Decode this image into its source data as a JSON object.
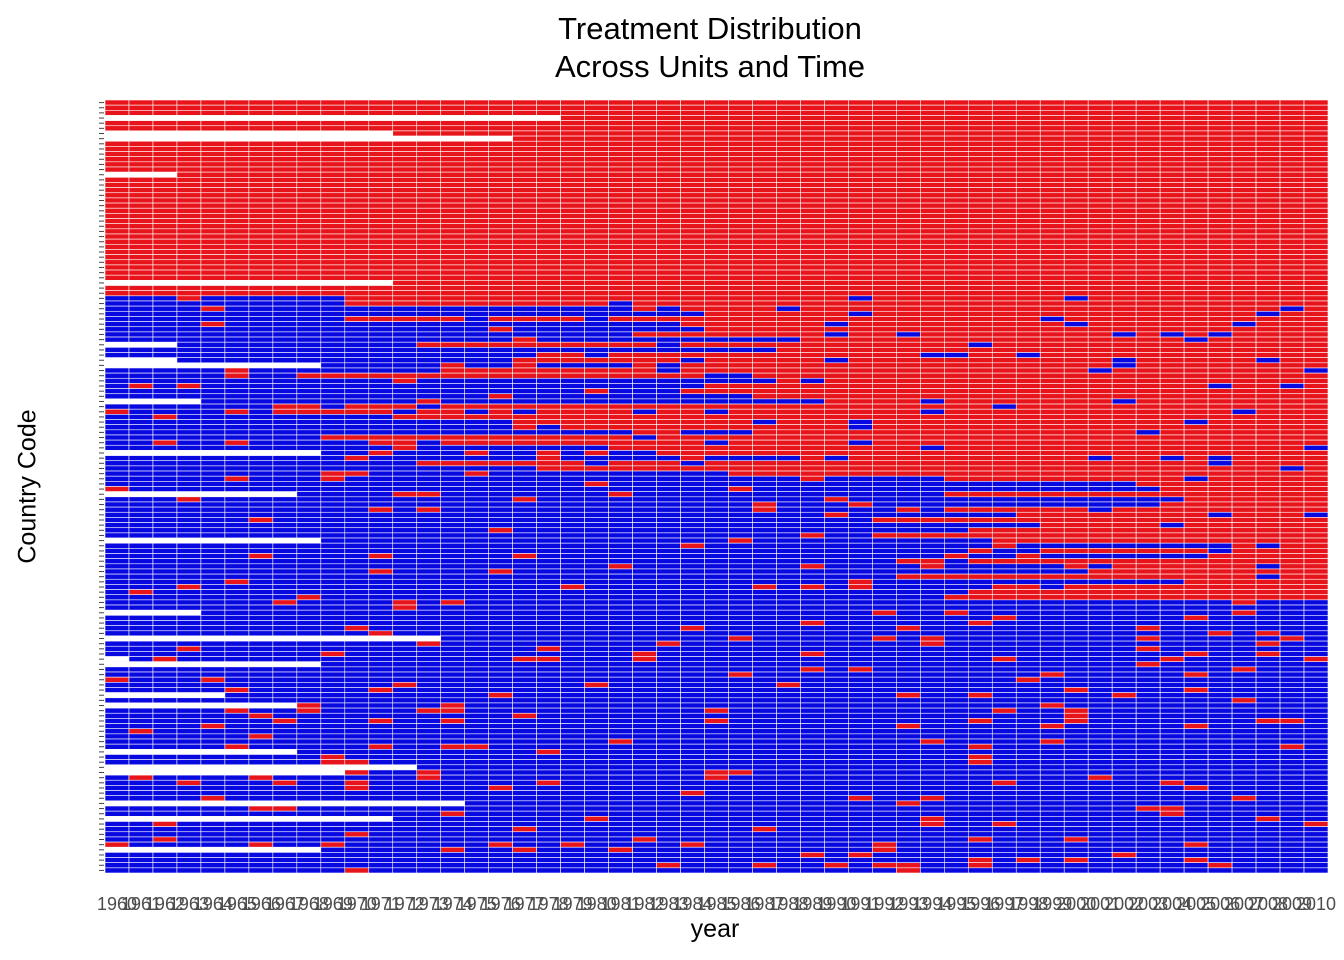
{
  "chart_data": {
    "type": "heatmap",
    "title": "Treatment Distribution\nAcross Units and Time",
    "xlabel": "year",
    "ylabel": "Country Code",
    "x_range": [
      1960,
      2010
    ],
    "x_ticks": [
      1960,
      1961,
      1962,
      1963,
      1964,
      1965,
      1966,
      1967,
      1968,
      1969,
      1970,
      1971,
      1972,
      1973,
      1974,
      1975,
      1976,
      1977,
      1978,
      1979,
      1980,
      1981,
      1982,
      1983,
      1984,
      1985,
      1986,
      1987,
      1988,
      1989,
      1990,
      1991,
      1992,
      1993,
      1994,
      1995,
      1996,
      1997,
      1998,
      1999,
      2000,
      2001,
      2002,
      2003,
      2004,
      2005,
      2006,
      2007,
      2008,
      2009,
      2010
    ],
    "n_units": 150,
    "legend": "none",
    "grid": false,
    "colors": {
      "treated": "#e8141b",
      "untreated": "#0808e0",
      "missing": "#ffffff"
    },
    "bands": [
      {
        "rows": [
          0,
          37
        ],
        "value": "treated"
      },
      {
        "rows": [
          38,
          72
        ],
        "value": "mixed"
      },
      {
        "rows": [
          73,
          96
        ],
        "value": "mixed-late-treated"
      },
      {
        "rows": [
          97,
          149
        ],
        "value": "untreated"
      }
    ]
  }
}
